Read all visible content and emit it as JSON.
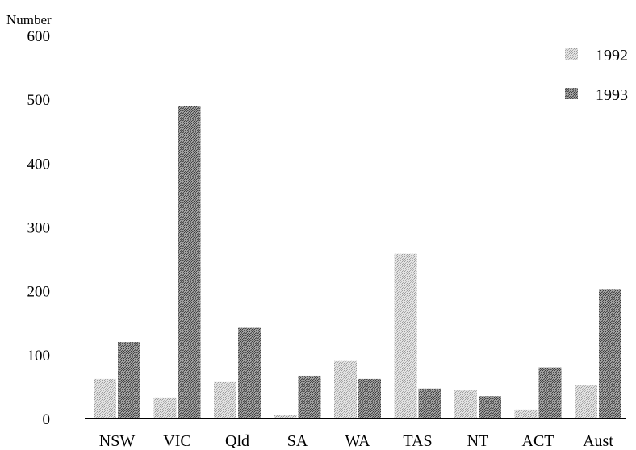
{
  "chart_data": {
    "type": "bar",
    "title": "",
    "xlabel": "",
    "ylabel": "Number",
    "ylim": [
      0,
      600
    ],
    "yticks": [
      0,
      100,
      200,
      300,
      400,
      500,
      600
    ],
    "grid": false,
    "legend_position": "top-right",
    "categories": [
      "NSW",
      "VIC",
      "Qld",
      "SA",
      "WA",
      "TAS",
      "NT",
      "ACT",
      "Aust"
    ],
    "series": [
      {
        "name": "1992",
        "color": "#cfcfcf",
        "values": [
          62,
          33,
          57,
          6,
          90,
          258,
          45,
          14,
          52
        ]
      },
      {
        "name": "1993",
        "color": "#8a8a8a",
        "values": [
          120,
          490,
          142,
          67,
          62,
          47,
          35,
          80,
          203
        ]
      }
    ]
  }
}
